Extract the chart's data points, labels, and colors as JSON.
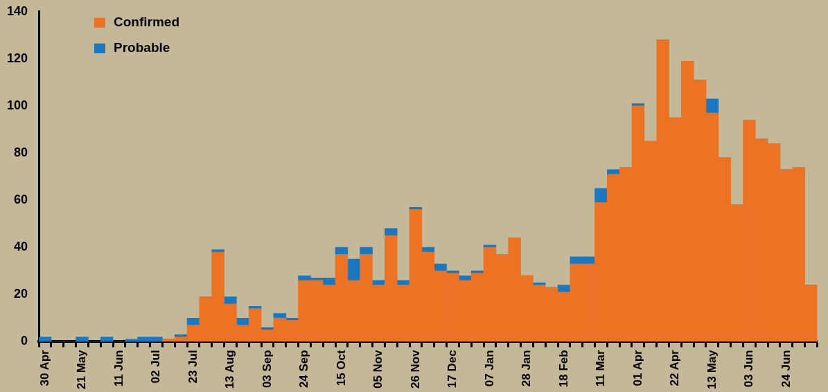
{
  "chart_data": {
    "type": "bar",
    "stacked": true,
    "categories": [
      "30 Apr",
      null,
      null,
      "21 May",
      null,
      null,
      "11 Jun",
      null,
      null,
      "02 Jul",
      null,
      null,
      "23 Jul",
      null,
      null,
      "13 Aug",
      null,
      null,
      "03 Sep",
      null,
      null,
      "24 Sep",
      null,
      null,
      "15 Oct",
      null,
      null,
      "05 Nov",
      null,
      null,
      "26 Nov",
      null,
      null,
      "17 Dec",
      null,
      null,
      "07 Jan",
      null,
      null,
      "28 Jan",
      null,
      null,
      "18 Feb",
      null,
      null,
      "11 Mar",
      null,
      null,
      "01 Apr",
      null,
      null,
      "22 Apr",
      null,
      null,
      "13 May",
      null,
      null,
      "03 Jun",
      null,
      null,
      "24 Jun",
      null,
      null
    ],
    "series": [
      {
        "name": "Confirmed",
        "color": "#ec7224",
        "values": [
          0,
          0,
          0,
          0,
          0,
          0,
          0,
          0,
          0,
          0,
          1,
          2,
          7,
          19,
          38,
          16,
          7,
          14,
          5,
          10,
          9,
          26,
          26,
          24,
          37,
          26,
          37,
          24,
          45,
          24,
          56,
          38,
          30,
          29,
          26,
          29,
          40,
          37,
          44,
          28,
          24,
          23,
          21,
          33,
          33,
          59,
          71,
          74,
          100,
          85,
          128,
          95,
          119,
          111,
          97,
          78,
          58,
          94,
          86,
          84,
          73,
          74,
          24
        ]
      },
      {
        "name": "Probable",
        "color": "#1a77c0",
        "values": [
          2,
          0,
          0,
          2,
          0,
          2,
          0,
          1,
          2,
          2,
          0,
          1,
          3,
          0,
          1,
          3,
          3,
          1,
          1,
          2,
          1,
          2,
          1,
          3,
          3,
          9,
          3,
          2,
          3,
          2,
          1,
          2,
          3,
          1,
          2,
          1,
          1,
          0,
          0,
          0,
          1,
          0,
          3,
          3,
          3,
          6,
          2,
          0,
          1,
          0,
          0,
          0,
          0,
          0,
          6,
          0,
          0,
          0,
          0,
          0,
          0,
          0,
          0
        ]
      }
    ],
    "ylim": [
      0,
      140
    ],
    "yticks": [
      0,
      20,
      40,
      60,
      80,
      100,
      120,
      140
    ],
    "legend": "top left"
  }
}
